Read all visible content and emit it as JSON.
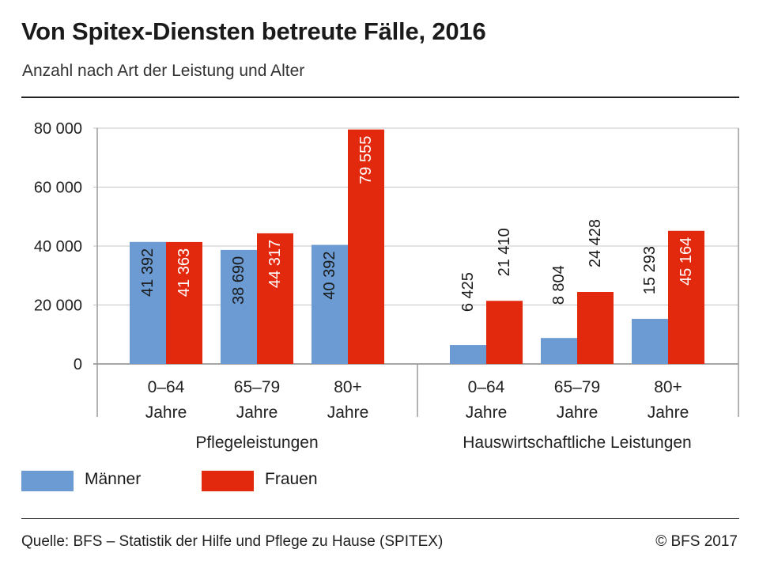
{
  "header": {
    "title": "Von Spitex-Diensten betreute Fälle, 2016",
    "subtitle": "Anzahl nach Art der Leistung und Alter"
  },
  "chart_data": {
    "type": "bar",
    "ylim": [
      0,
      80000
    ],
    "yticks": [
      0,
      20000,
      40000,
      60000,
      80000
    ],
    "ytick_labels": [
      "0",
      "20 000",
      "40 000",
      "60 000",
      "80 000"
    ],
    "grid": true,
    "legend_position": "bottom-left",
    "groups": [
      {
        "label": "Pflegeleistungen",
        "categories": [
          {
            "line1": "0–64",
            "line2": "Jahre",
            "men": 41392,
            "women": 41363,
            "men_label": "41 392",
            "women_label": "41 363"
          },
          {
            "line1": "65–79",
            "line2": "Jahre",
            "men": 38690,
            "women": 44317,
            "men_label": "38 690",
            "women_label": "44 317"
          },
          {
            "line1": "80+",
            "line2": "Jahre",
            "men": 40392,
            "women": 79555,
            "men_label": "40 392",
            "women_label": "79 555"
          }
        ]
      },
      {
        "label": "Hauswirtschaftliche Leistungen",
        "categories": [
          {
            "line1": "0–64",
            "line2": "Jahre",
            "men": 6425,
            "women": 21410,
            "men_label": "6 425",
            "women_label": "21 410"
          },
          {
            "line1": "65–79",
            "line2": "Jahre",
            "men": 8804,
            "women": 24428,
            "men_label": "8 804",
            "women_label": "24 428"
          },
          {
            "line1": "80+",
            "line2": "Jahre",
            "men": 15293,
            "women": 45164,
            "men_label": "15 293",
            "women_label": "45 164"
          }
        ]
      }
    ],
    "series": [
      {
        "name": "Männer",
        "color": "#6b9bd2"
      },
      {
        "name": "Frauen",
        "color": "#e3290d"
      }
    ]
  },
  "legend": {
    "men_label": "Männer",
    "women_label": "Frauen",
    "men_color": "#6b9bd2",
    "women_color": "#e3290d"
  },
  "footer": {
    "source": "Quelle: BFS – Statistik der Hilfe und Pflege zu Hause (SPITEX)",
    "copyright": "© BFS 2017"
  }
}
